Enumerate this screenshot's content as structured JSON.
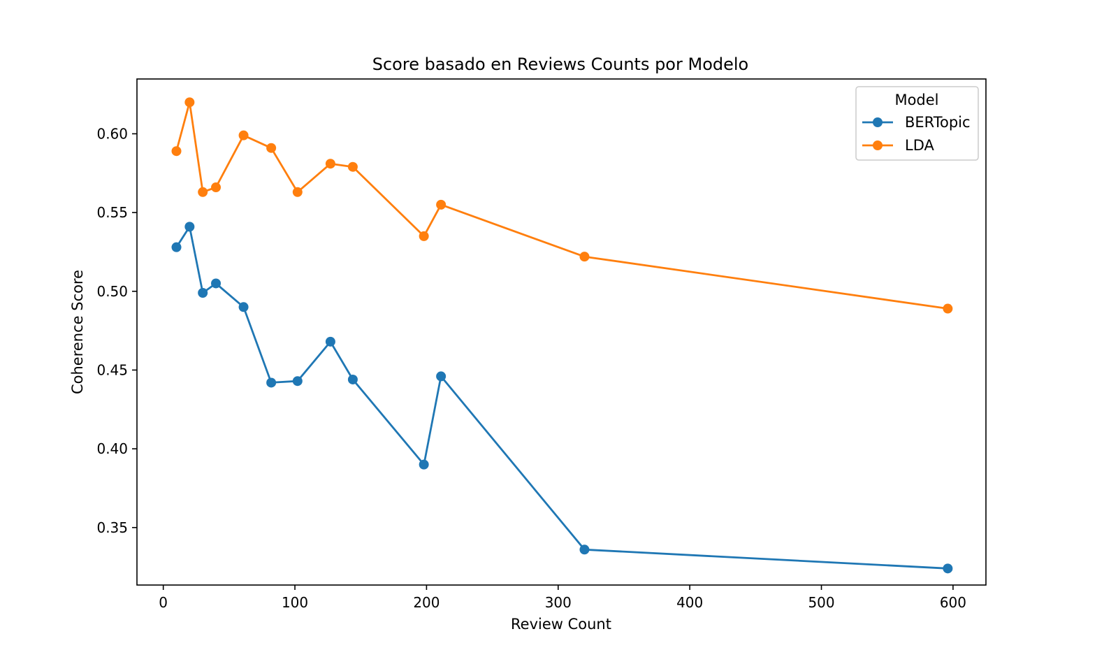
{
  "chart_data": {
    "type": "line",
    "title": "Score basado en Reviews Counts por Modelo",
    "xlabel": "Review Count",
    "ylabel": "Coherence Score",
    "xlim": [
      -20,
      625
    ],
    "ylim": [
      0.3135,
      0.6348
    ],
    "xticks": [
      0,
      100,
      200,
      300,
      400,
      500,
      600
    ],
    "yticks": [
      0.35,
      0.4,
      0.45,
      0.5,
      0.55,
      0.6
    ],
    "xtick_labels": [
      "0",
      "100",
      "200",
      "300",
      "400",
      "500",
      "600"
    ],
    "ytick_labels": [
      "0.35",
      "0.40",
      "0.45",
      "0.50",
      "0.55",
      "0.60"
    ],
    "grid": false,
    "legend": {
      "title": "Model",
      "position": "top-right"
    },
    "series": [
      {
        "name": "BERTopic",
        "color": "#1f77b4",
        "points": [
          [
            10,
            0.528
          ],
          [
            20,
            0.541
          ],
          [
            30,
            0.499
          ],
          [
            40,
            0.505
          ],
          [
            61,
            0.49
          ],
          [
            82,
            0.442
          ],
          [
            102,
            0.443
          ],
          [
            127,
            0.468
          ],
          [
            144,
            0.444
          ],
          [
            198,
            0.39
          ],
          [
            211,
            0.446
          ],
          [
            320,
            0.336
          ],
          [
            596,
            0.324
          ]
        ]
      },
      {
        "name": "LDA",
        "color": "#ff7f0e",
        "points": [
          [
            10,
            0.589
          ],
          [
            20,
            0.62
          ],
          [
            30,
            0.563
          ],
          [
            40,
            0.566
          ],
          [
            61,
            0.599
          ],
          [
            82,
            0.591
          ],
          [
            102,
            0.563
          ],
          [
            127,
            0.581
          ],
          [
            144,
            0.579
          ],
          [
            198,
            0.535
          ],
          [
            211,
            0.555
          ],
          [
            320,
            0.522
          ],
          [
            596,
            0.489
          ]
        ]
      }
    ]
  }
}
